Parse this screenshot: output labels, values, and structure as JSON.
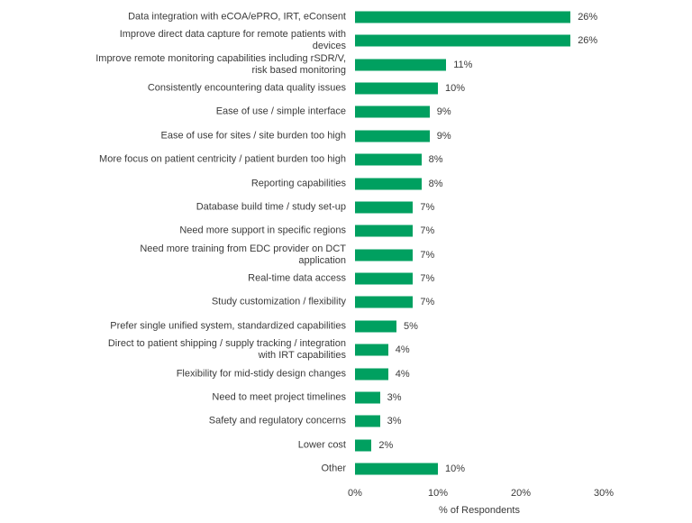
{
  "chart_data": {
    "type": "bar",
    "orientation": "horizontal",
    "title": "",
    "xlabel": "% of Respondents",
    "ylabel": "",
    "xlim": [
      0,
      30
    ],
    "xticks": [
      "0%",
      "10%",
      "20%",
      "30%"
    ],
    "grid": false,
    "bar_color": "#00a060",
    "categories": [
      "Data integration with eCOA/ePRO, IRT, eConsent",
      "Improve direct data capture for remote patients with devices",
      "Improve remote monitoring capabilities including rSDR/V, risk based monitoring",
      "Consistently encountering data quality issues",
      "Ease of use / simple interface",
      "Ease of use for sites / site burden too high",
      "More focus on patient centricity / patient burden too high",
      "Reporting capabilities",
      "Database build time / study set-up",
      "Need more support in specific regions",
      "Need more training from EDC provider on DCT application",
      "Real-time data access",
      "Study customization / flexibility",
      "Prefer single unified system, standardized capabilities",
      "Direct to patient shipping / supply tracking / integration with IRT capabilities",
      "Flexibility for mid-stidy design changes",
      "Need to meet project timelines",
      "Safety and regulatory concerns",
      "Lower cost",
      "Other"
    ],
    "values": [
      26,
      26,
      11,
      10,
      9,
      9,
      8,
      8,
      7,
      7,
      7,
      7,
      7,
      5,
      4,
      4,
      3,
      3,
      2,
      10
    ],
    "labels": [
      "26%",
      "26%",
      "11%",
      "10%",
      "9%",
      "9%",
      "8%",
      "8%",
      "7%",
      "7%",
      "7%",
      "7%",
      "7%",
      "5%",
      "4%",
      "4%",
      "3%",
      "3%",
      "2%",
      "10%"
    ]
  }
}
